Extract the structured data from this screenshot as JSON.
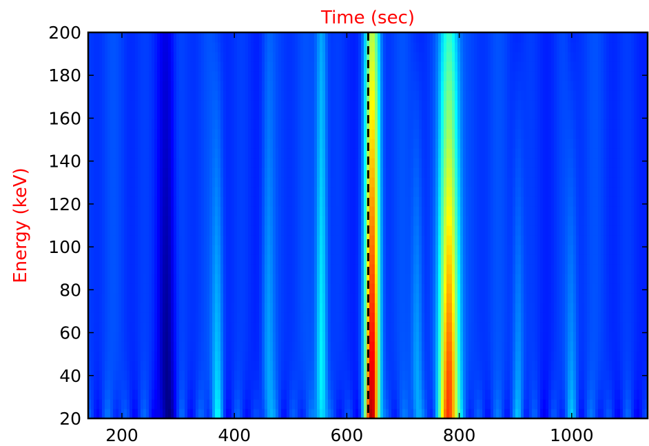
{
  "chart_data": {
    "type": "heatmap",
    "title": "Time (sec)",
    "xlabel": "",
    "ylabel": "Energy (keV)",
    "xlim": [
      140,
      1135
    ],
    "ylim": [
      20,
      200
    ],
    "xticks": [
      200,
      400,
      600,
      800,
      1000
    ],
    "yticks": [
      20,
      40,
      60,
      80,
      100,
      120,
      140,
      160,
      180,
      200
    ],
    "grid": false,
    "colormap": "jet",
    "label_color": "#ff0000",
    "reference_line": {
      "x": 638,
      "style": "dashed",
      "color": "#000000"
    },
    "features": [
      {
        "x_center": 645,
        "x_width": 9,
        "intensity_low_energy": 0.95,
        "intensity_high_energy": 0.55
      },
      {
        "x_center": 782,
        "x_width": 12,
        "intensity_low_energy": 0.88,
        "intensity_high_energy": 0.45
      },
      {
        "x_center": 555,
        "x_width": 7,
        "intensity_low_energy": 0.4,
        "intensity_high_energy": 0.3
      },
      {
        "x_center": 460,
        "x_width": 8,
        "intensity_low_energy": 0.3,
        "intensity_high_energy": 0.22
      },
      {
        "x_center": 370,
        "x_width": 7,
        "intensity_low_energy": 0.33,
        "intensity_high_energy": 0.18
      },
      {
        "x_center": 725,
        "x_width": 7,
        "intensity_low_energy": 0.32,
        "intensity_high_energy": 0.18
      },
      {
        "x_center": 905,
        "x_width": 7,
        "intensity_low_energy": 0.3,
        "intensity_high_energy": 0.18
      },
      {
        "x_center": 1000,
        "x_width": 7,
        "intensity_low_energy": 0.28,
        "intensity_high_energy": 0.16
      },
      {
        "x_center": 280,
        "x_width": 10,
        "intensity_low_energy": 0.02,
        "intensity_high_energy": 0.12
      }
    ]
  }
}
